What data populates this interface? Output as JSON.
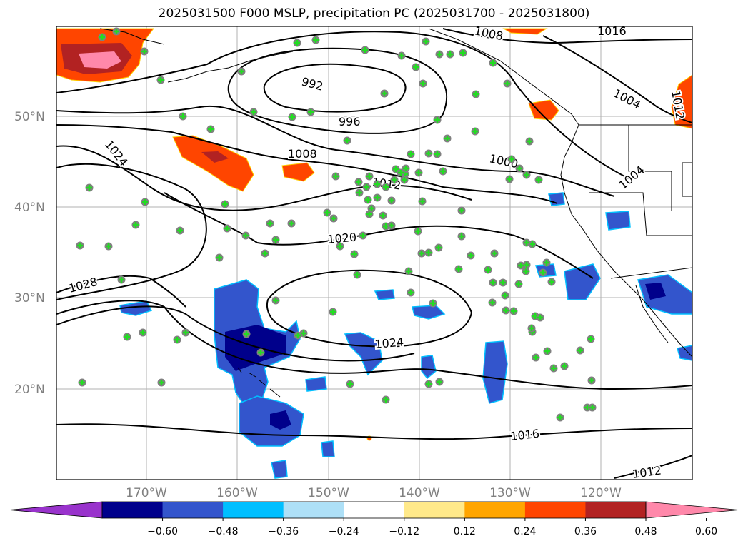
{
  "title": "2025031500 F000 MSLP, precipitation PC (2025031700 - 2025031800)",
  "map": {
    "lat_ticks": [
      "50°N",
      "40°N",
      "30°N",
      "20°N"
    ],
    "lon_ticks": [
      "170°W",
      "160°W",
      "150°W",
      "140°W",
      "130°W",
      "120°W"
    ],
    "contour_labels": [
      "992",
      "996",
      "1000",
      "1004",
      "1004",
      "1008",
      "1008",
      "1012",
      "1012",
      "1016",
      "1016",
      "1020",
      "1024",
      "1024",
      "1028",
      "1012"
    ],
    "colors": {
      "land_outline": "#000000",
      "contour": "#000000",
      "grid": "#b0b0b0",
      "marker_fill": "#808080",
      "marker_cross": "#22dd22"
    }
  },
  "colorbar": {
    "ticks": [
      "−0.60",
      "−0.48",
      "−0.36",
      "−0.24",
      "−0.12",
      "0.12",
      "0.24",
      "0.36",
      "0.48",
      "0.60"
    ],
    "colors": [
      "#9933cc",
      "#00008b",
      "#3355cc",
      "#00bfff",
      "#aee0f7",
      "#ffffff",
      "#ffe98a",
      "#ffa500",
      "#ff4500",
      "#b22222",
      "#ff88aa"
    ]
  }
}
